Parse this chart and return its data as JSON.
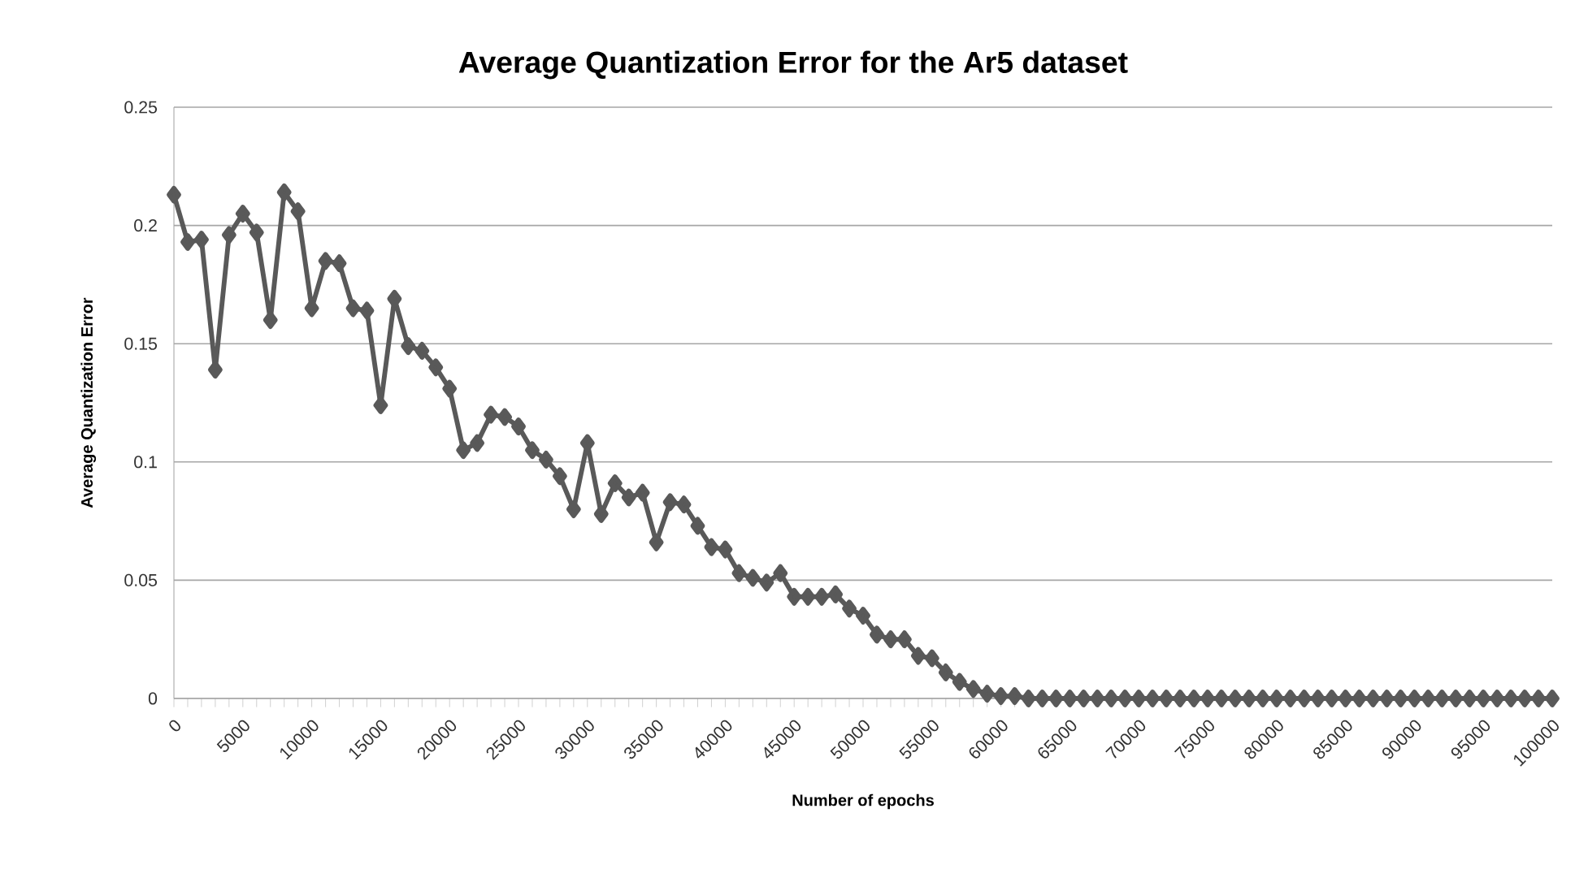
{
  "chart_data": {
    "type": "line",
    "title": "Average Quantization Error for the Ar5 dataset",
    "xlabel": "Number of epochs",
    "ylabel": "Average Quantization  Error",
    "x": [
      0,
      1000,
      2000,
      3000,
      4000,
      5000,
      6000,
      7000,
      8000,
      9000,
      10000,
      11000,
      12000,
      13000,
      14000,
      15000,
      16000,
      17000,
      18000,
      19000,
      20000,
      21000,
      22000,
      23000,
      24000,
      25000,
      26000,
      27000,
      28000,
      29000,
      30000,
      31000,
      32000,
      33000,
      34000,
      35000,
      36000,
      37000,
      38000,
      39000,
      40000,
      41000,
      42000,
      43000,
      44000,
      45000,
      46000,
      47000,
      48000,
      49000,
      50000,
      51000,
      52000,
      53000,
      54000,
      55000,
      56000,
      57000,
      58000,
      59000,
      60000,
      61000,
      62000,
      63000,
      64000,
      65000,
      66000,
      67000,
      68000,
      69000,
      70000,
      71000,
      72000,
      73000,
      74000,
      75000,
      76000,
      77000,
      78000,
      79000,
      80000,
      81000,
      82000,
      83000,
      84000,
      85000,
      86000,
      87000,
      88000,
      89000,
      90000,
      91000,
      92000,
      93000,
      94000,
      95000,
      96000,
      97000,
      98000,
      99000,
      100000
    ],
    "values": [
      0.213,
      0.193,
      0.194,
      0.139,
      0.196,
      0.205,
      0.197,
      0.16,
      0.214,
      0.206,
      0.165,
      0.185,
      0.184,
      0.165,
      0.164,
      0.124,
      0.169,
      0.149,
      0.147,
      0.14,
      0.131,
      0.105,
      0.108,
      0.12,
      0.119,
      0.115,
      0.105,
      0.101,
      0.094,
      0.08,
      0.108,
      0.078,
      0.091,
      0.085,
      0.087,
      0.066,
      0.083,
      0.082,
      0.073,
      0.064,
      0.063,
      0.053,
      0.051,
      0.049,
      0.053,
      0.043,
      0.043,
      0.043,
      0.044,
      0.038,
      0.035,
      0.027,
      0.025,
      0.025,
      0.018,
      0.017,
      0.011,
      0.007,
      0.004,
      0.002,
      0.001,
      0.001,
      0,
      0,
      0,
      0,
      0,
      0,
      0,
      0,
      0,
      0,
      0,
      0,
      0,
      0,
      0,
      0,
      0,
      0,
      0,
      0,
      0,
      0,
      0,
      0,
      0,
      0,
      0,
      0,
      0,
      0,
      0,
      0,
      0,
      0,
      0,
      0,
      0,
      0,
      0
    ],
    "color": "#595959",
    "marker": "diamond",
    "line_style": "solid",
    "xlim": [
      0,
      100000
    ],
    "xticks": [
      0,
      5000,
      10000,
      15000,
      20000,
      25000,
      30000,
      35000,
      40000,
      45000,
      50000,
      55000,
      60000,
      65000,
      70000,
      75000,
      80000,
      85000,
      90000,
      95000,
      100000
    ],
    "ylim": [
      0,
      0.25
    ],
    "yticks": [
      0,
      0.05,
      0.1,
      0.15,
      0.2,
      0.25
    ],
    "grid": "y"
  }
}
